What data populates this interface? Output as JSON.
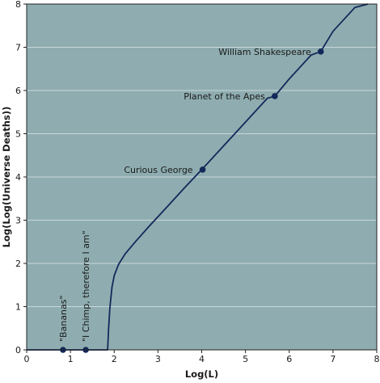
{
  "chart_data": {
    "type": "line",
    "title": "",
    "xlabel": "Log(L)",
    "ylabel": "Log(Log(Universe Deaths))",
    "xlim": [
      0,
      8
    ],
    "ylim": [
      0,
      8
    ],
    "x_ticks": [
      "0",
      "1",
      "2",
      "3",
      "4",
      "5",
      "6",
      "7",
      "8"
    ],
    "y_ticks": [
      "0",
      "1",
      "2",
      "3",
      "4",
      "5",
      "6",
      "7",
      "8"
    ],
    "grid": "horizontal",
    "colors": {
      "plot_background": "#8fadb0",
      "line": "#14285a",
      "grid": "#c8d8da",
      "axis": "#222222"
    },
    "series": [
      {
        "x": [
          0,
          1.85,
          1.87,
          1.9,
          1.95,
          2.0,
          2.1,
          2.25,
          2.5,
          2.8,
          3.2,
          3.6,
          4.0,
          4.5,
          5.0,
          5.5,
          5.67,
          6.0,
          6.5,
          6.72,
          7.0,
          7.5,
          7.8
        ],
        "y": [
          0,
          0,
          0.45,
          0.95,
          1.45,
          1.72,
          1.98,
          2.22,
          2.52,
          2.86,
          3.3,
          3.74,
          4.17,
          4.72,
          5.27,
          5.82,
          5.87,
          6.27,
          6.82,
          6.9,
          7.37,
          7.92,
          8.0
        ]
      }
    ],
    "annotations": [
      {
        "label": "William Shakespeare",
        "x": 6.72,
        "y": 6.9,
        "orientation": "horizontal"
      },
      {
        "label": "Planet of the Apes",
        "x": 5.67,
        "y": 5.87,
        "orientation": "horizontal"
      },
      {
        "label": "Curious George",
        "x": 4.02,
        "y": 4.17,
        "orientation": "horizontal"
      },
      {
        "label": "\"Bananas\"",
        "x": 0.83,
        "y": 0,
        "orientation": "vertical"
      },
      {
        "label": "\"I Chimp, therefore I am\"",
        "x": 1.35,
        "y": 0,
        "orientation": "vertical"
      }
    ]
  }
}
